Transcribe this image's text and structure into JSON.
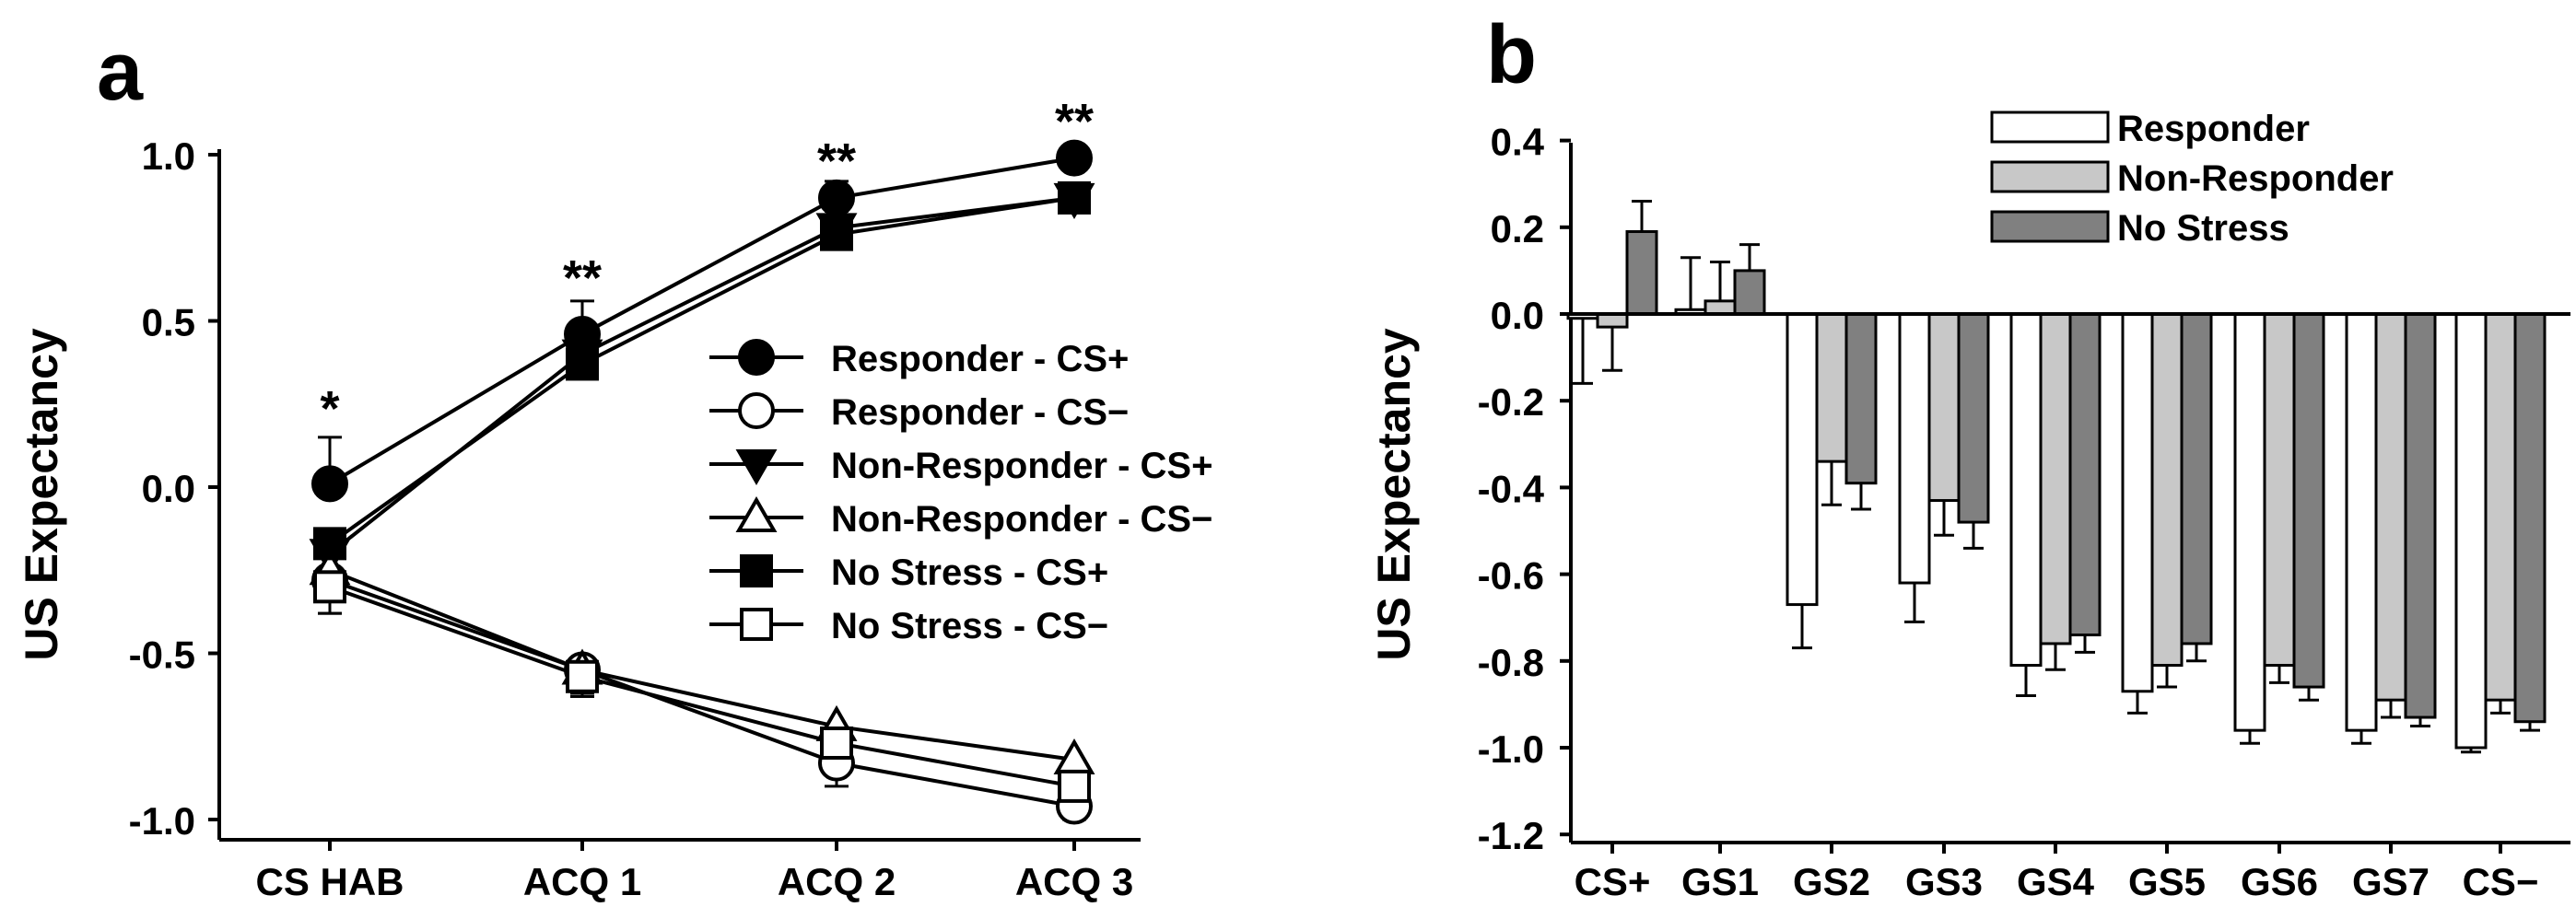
{
  "panels": [
    {
      "letter": "a"
    },
    {
      "letter": "b"
    }
  ],
  "chart_data": [
    {
      "type": "line",
      "panel": "a",
      "title": "",
      "xlabel": "",
      "ylabel": "US Expectancy",
      "categories": [
        "CS HAB",
        "ACQ 1",
        "ACQ 2",
        "ACQ 3"
      ],
      "ylim": [
        -1.1,
        1.1
      ],
      "yticks": [
        1.0,
        0.5,
        0.0,
        -0.5,
        -1.0
      ],
      "ytick_labels": [
        "1.0",
        "0.5",
        "0.0",
        "-0.5",
        "-1.0"
      ],
      "significance": [
        "*",
        "**",
        "**",
        "**"
      ],
      "legend_position": "center-right",
      "series": [
        {
          "name": "Responder - CS+",
          "marker": "circle",
          "fill": "#000000",
          "values": [
            0.01,
            0.46,
            0.87,
            0.99
          ],
          "errors": [
            0.14,
            0.1,
            0.05,
            0.02
          ]
        },
        {
          "name": "Responder - CS−",
          "marker": "circle",
          "fill": "#ffffff",
          "values": [
            -0.28,
            -0.55,
            -0.83,
            -0.96
          ],
          "errors": [
            0.1,
            0.08,
            0.07,
            0.04
          ]
        },
        {
          "name": "Non-Responder - CS+",
          "marker": "triangle-down",
          "fill": "#000000",
          "values": [
            -0.2,
            0.4,
            0.78,
            0.87
          ],
          "errors": [
            0.08,
            0.06,
            0.05,
            0.03
          ]
        },
        {
          "name": "Non-Responder - CS−",
          "marker": "triangle-up",
          "fill": "#ffffff",
          "values": [
            -0.25,
            -0.55,
            -0.72,
            -0.82
          ],
          "errors": [
            0.08,
            0.07,
            0.06,
            0.05
          ]
        },
        {
          "name": "No Stress - CS+",
          "marker": "square",
          "fill": "#000000",
          "values": [
            -0.17,
            0.37,
            0.76,
            0.87
          ],
          "errors": [
            0.08,
            0.05,
            0.04,
            0.03
          ]
        },
        {
          "name": "No Stress - CS−",
          "marker": "square",
          "fill": "#ffffff",
          "values": [
            -0.3,
            -0.57,
            -0.77,
            -0.9
          ],
          "errors": [
            0.08,
            0.06,
            0.05,
            0.04
          ]
        }
      ]
    },
    {
      "type": "bar",
      "panel": "b",
      "title": "",
      "xlabel": "",
      "ylabel": "US Expectancy",
      "categories": [
        "CS+",
        "GS1",
        "GS2",
        "GS3",
        "GS4",
        "GS5",
        "GS6",
        "GS7",
        "CS−"
      ],
      "ylim": [
        -1.2,
        0.4
      ],
      "yticks": [
        0.4,
        0.2,
        0.0,
        -0.2,
        -0.4,
        -0.6,
        -0.8,
        -1.0,
        -1.2
      ],
      "ytick_labels": [
        "0.4",
        "0.2",
        "0.0",
        "-0.2",
        "-0.4",
        "-0.6",
        "-0.8",
        "-1.0",
        "-1.2"
      ],
      "legend_position": "top-right",
      "series": [
        {
          "name": "Responder",
          "color": "#ffffff",
          "values": [
            -0.01,
            0.01,
            -0.67,
            -0.62,
            -0.81,
            -0.87,
            -0.96,
            -0.96,
            -1.0
          ],
          "errors": [
            0.15,
            0.12,
            0.1,
            0.09,
            0.07,
            0.05,
            0.03,
            0.03,
            0.01
          ]
        },
        {
          "name": "Non-Responder",
          "color": "#c8c8c8",
          "values": [
            -0.03,
            0.03,
            -0.34,
            -0.43,
            -0.76,
            -0.81,
            -0.81,
            -0.89,
            -0.89
          ],
          "errors": [
            0.1,
            0.09,
            0.1,
            0.08,
            0.06,
            0.05,
            0.04,
            0.04,
            0.03
          ]
        },
        {
          "name": "No Stress",
          "color": "#808080",
          "values": [
            0.19,
            0.1,
            -0.39,
            -0.48,
            -0.74,
            -0.76,
            -0.86,
            -0.93,
            -0.94
          ],
          "errors": [
            0.07,
            0.06,
            0.06,
            0.06,
            0.04,
            0.04,
            0.03,
            0.02,
            0.02
          ]
        }
      ]
    }
  ]
}
